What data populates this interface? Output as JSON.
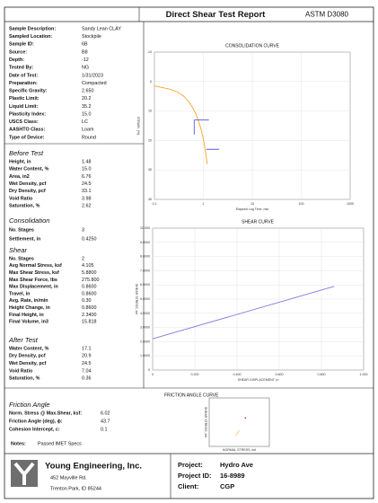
{
  "header": {
    "title": "Direct Shear Test Report",
    "standard": "ASTM D3080"
  },
  "sample_info": [
    {
      "label": "Sample Description:",
      "value": "Sandy Lean CLAY"
    },
    {
      "label": "Sampled Location:",
      "value": "Stockpile"
    },
    {
      "label": "Sample ID:",
      "value": "6B"
    },
    {
      "label": "Source:",
      "value": "B8"
    },
    {
      "label": "Depth:",
      "value": "-12"
    },
    {
      "label": "Tested By:",
      "value": "NG"
    },
    {
      "label": "Date of Test:",
      "value": "1/31/2023"
    },
    {
      "label": "Preparation:",
      "value": "Compacted"
    },
    {
      "label": "Specific Gravity:",
      "value": "2.650"
    },
    {
      "label": "Plastic Limit:",
      "value": "20.2"
    },
    {
      "label": "Liquid Limit:",
      "value": "35.2"
    },
    {
      "label": "Plasticity Index:",
      "value": "15.0"
    },
    {
      "label": "USCS Class:",
      "value": "LC"
    },
    {
      "label": "AASHTO Class:",
      "value": "Loam"
    },
    {
      "label": "Type of Device:",
      "value": "Round"
    }
  ],
  "before_test": {
    "heading": "Before Test",
    "rows": [
      {
        "label": "Height, in",
        "value": "1.48"
      },
      {
        "label": "Water Content, %",
        "value": "15.0"
      },
      {
        "label": "Area, in2",
        "value": "6.76"
      },
      {
        "label": "Wet Density, pcf",
        "value": "24.5"
      },
      {
        "label": "Dry Density, pcf",
        "value": "33.1"
      },
      {
        "label": "Void Ratio",
        "value": "3.98"
      },
      {
        "label": "Saturation, %",
        "value": "2.62"
      }
    ]
  },
  "consolidation": {
    "heading": "Consolidation",
    "rows": [
      {
        "label": "No. Stages",
        "value": "3"
      },
      {
        "label": "Settlement, in",
        "value": "0.4250"
      }
    ]
  },
  "shear": {
    "heading": "Shear",
    "rows": [
      {
        "label": "No. Stages",
        "value": "2"
      },
      {
        "label": "Avg Normal Stress, ksf",
        "value": "4.105"
      },
      {
        "label": "Max Shear Stress, ksf",
        "value": "5.8800"
      },
      {
        "label": "Max Shear Force, lbs",
        "value": "275.800"
      },
      {
        "label": "Max Displacement, in",
        "value": "0.8600"
      },
      {
        "label": "Travel, in",
        "value": "0.8600"
      },
      {
        "label": "Avg. Rate, in/min",
        "value": "0.30"
      },
      {
        "label": "Height Change, in",
        "value": "0.8600"
      },
      {
        "label": "Final Height, in",
        "value": "2.3400"
      },
      {
        "label": "Final Volume, in3",
        "value": "15.818"
      }
    ]
  },
  "after_test": {
    "heading": "After Test",
    "rows": [
      {
        "label": "Water Content, %",
        "value": "17.1"
      },
      {
        "label": "Dry Density, pcf",
        "value": "20.9"
      },
      {
        "label": "Wet Density, pcf",
        "value": "24.5"
      },
      {
        "label": "Void Ratio",
        "value": "7.04"
      },
      {
        "label": "Saturation, %",
        "value": "0.36"
      }
    ]
  },
  "friction_angle": {
    "heading": "Friction Angle",
    "rows": [
      {
        "label": "Norm. Stress @ Max.Shear, ksf:",
        "value": "6.02"
      },
      {
        "label": "Friction Angle (deg), ϕ:",
        "value": "43.7"
      },
      {
        "label": "Cohesion Intercept, c:",
        "value": "0.1"
      }
    ]
  },
  "notes": {
    "label": "Notes:",
    "value": "Passed IMET Specs"
  },
  "footer": {
    "company": "Young Engineering, Inc.",
    "address": [
      "452 Mayville Rd.",
      "Trenton Park, ID 85244"
    ],
    "project": [
      {
        "label": "Project:",
        "value": "Hydro Ave"
      },
      {
        "label": "Project ID:",
        "value": "16-8989"
      },
      {
        "label": "Client:",
        "value": "CGP"
      }
    ]
  },
  "chart_data": [
    {
      "type": "line",
      "title": "CONSOLIDATION CURVE",
      "xlabel": "Elapsed Log Time, min",
      "ylabel": "STRAIN, (%)",
      "xlog": true,
      "y_reversed": true,
      "grid": true,
      "xlim": [
        0.1,
        1000
      ],
      "xticks": [
        0.1,
        1,
        10,
        100,
        1000
      ],
      "ylim": [
        -10,
        40
      ],
      "yticks": [
        -10,
        0,
        10,
        20,
        30,
        40
      ],
      "series": [
        {
          "color": "#f5a623",
          "x": [
            0.1,
            0.2,
            0.3,
            0.4,
            0.5,
            0.6,
            0.7,
            0.8,
            0.9,
            1.0,
            1.1,
            1.2
          ],
          "values": [
            1.5,
            2.5,
            3.6,
            5.0,
            6.8,
            8.8,
            11.0,
            13.5,
            16.3,
            19.5,
            23.5,
            28
          ]
        },
        {
          "color": "#5a5ae0",
          "x": [
            0.65,
            1.3,
            null,
            0.65,
            0.65,
            null,
            1.15,
            2.1
          ],
          "values": [
            13,
            13,
            null,
            13,
            18,
            null,
            23,
            23
          ]
        }
      ]
    },
    {
      "type": "line",
      "title": "SHEAR CURVE",
      "xlabel": "SHEAR DISPLACEMENT, in",
      "ylabel": "SHEAR STRESS, ksf",
      "grid": true,
      "xlim": [
        0,
        1
      ],
      "xticks": [
        0,
        {
          "value": 0.2,
          "label": "0.200"
        },
        {
          "value": 0.4,
          "label": "0.400"
        },
        {
          "value": 0.6,
          "label": "0.600"
        },
        {
          "value": 0.8,
          "label": "0.800"
        },
        {
          "value": 1,
          "label": "1.000"
        }
      ],
      "ylim": [
        0,
        10
      ],
      "yticks": [
        0,
        {
          "value": 1,
          "label": "1.0000"
        },
        {
          "value": 2,
          "label": "2.0000"
        },
        {
          "value": 3,
          "label": "3.0000"
        },
        {
          "value": 4,
          "label": "4.0000"
        },
        {
          "value": 5,
          "label": "5.0000"
        },
        {
          "value": 6,
          "label": "6.0000"
        },
        {
          "value": 7,
          "label": "7.0000"
        },
        {
          "value": 8,
          "label": "8.0000"
        },
        {
          "value": 9,
          "label": "9.0000"
        },
        {
          "value": 10,
          "label": "10.000"
        }
      ],
      "series": [
        {
          "color": "#7b7be0",
          "x": [
            0,
            0.86
          ],
          "values": [
            2.2,
            5.9
          ]
        }
      ]
    },
    {
      "type": "line",
      "title": "FRICTION ANGLE CURVE",
      "xlabel": "NORMAL STRESS, ksf",
      "ylabel": "SHEAR STRESS, ksf",
      "xlim": [
        0,
        10
      ],
      "ylim": [
        0,
        10
      ],
      "series": [
        {
          "color": "#f5a623",
          "x": [
            4.4,
            5.0
          ],
          "values": [
            2.2,
            3.3
          ]
        },
        {
          "color": "#e03030",
          "markers": true,
          "x": [
            6.02
          ],
          "values": [
            5.88
          ]
        }
      ]
    }
  ]
}
